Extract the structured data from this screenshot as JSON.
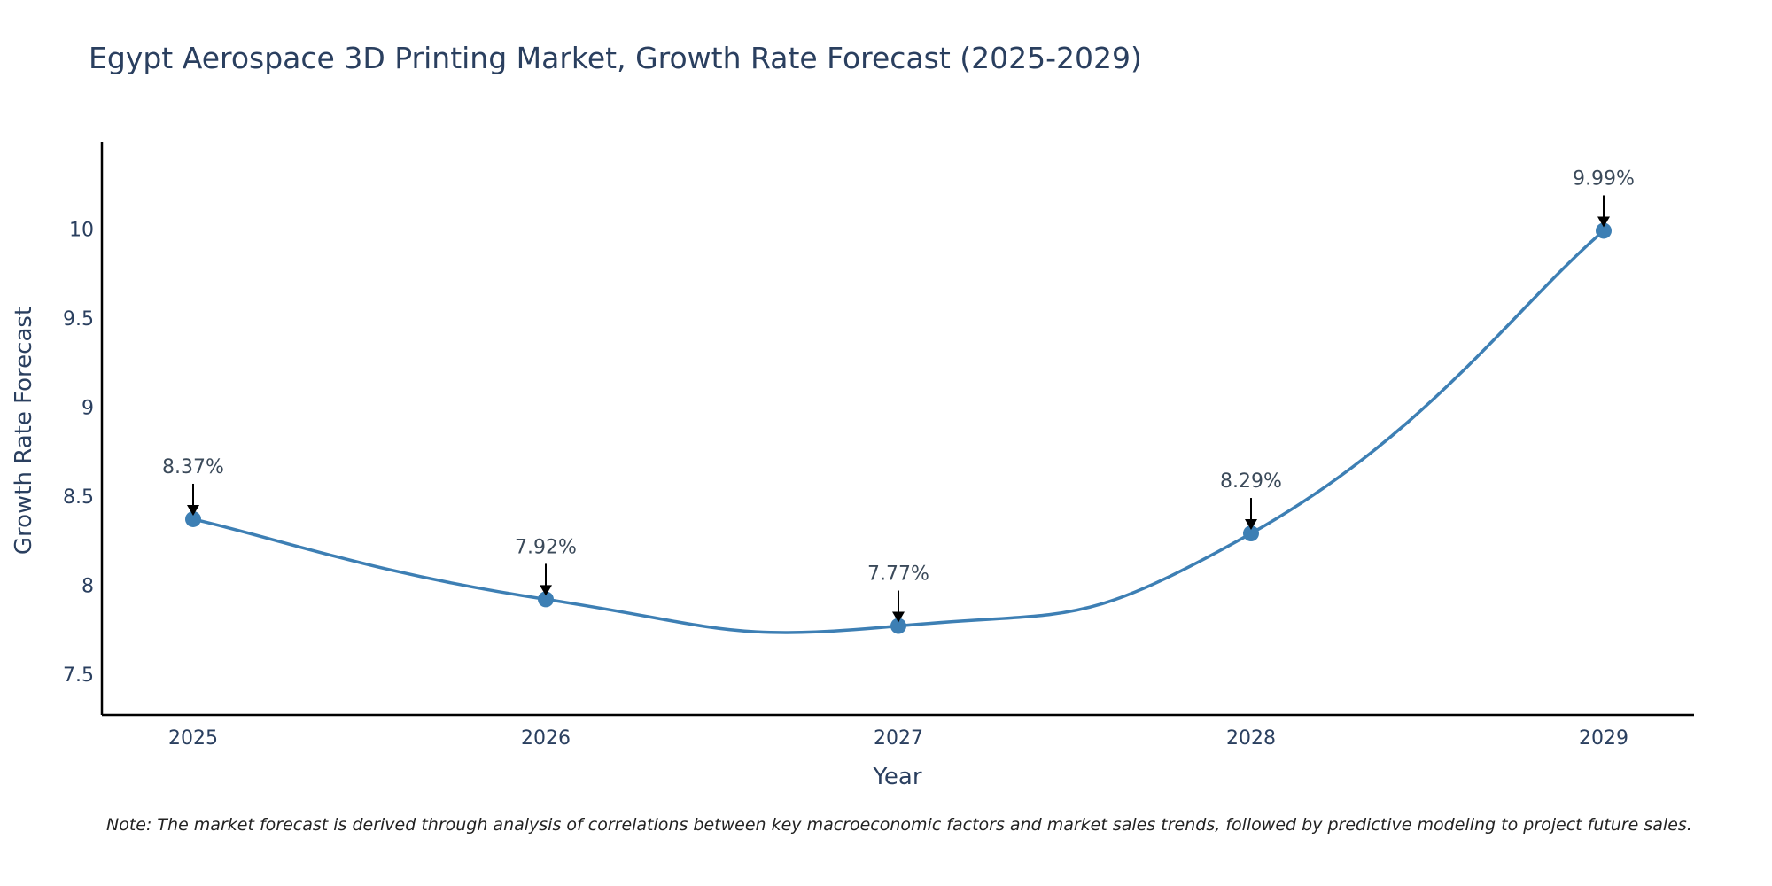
{
  "chart_data": {
    "type": "line",
    "title": "Egypt Aerospace 3D Printing Market, Growth Rate Forecast (2025-2029)",
    "xlabel": "Year",
    "ylabel": "Growth Rate Forecast",
    "categories": [
      "2025",
      "2026",
      "2027",
      "2028",
      "2029"
    ],
    "values": [
      8.37,
      7.92,
      7.77,
      8.29,
      9.99
    ],
    "data_labels": [
      "8.37%",
      "7.92%",
      "7.77%",
      "8.29%",
      "9.99%"
    ],
    "y_ticks": [
      7.5,
      8,
      8.5,
      9,
      9.5,
      10
    ],
    "y_tick_labels": [
      "7.5",
      "8",
      "8.5",
      "9",
      "9.5",
      "10"
    ],
    "ylim": [
      7.27,
      10.49
    ],
    "line_color": "#3d7fb4",
    "marker_color": "#3d7fb4",
    "grid": false
  },
  "note": "Note: The market forecast is derived through analysis of correlations between key macroeconomic factors and market sales trends, followed by predictive modeling to project future sales."
}
